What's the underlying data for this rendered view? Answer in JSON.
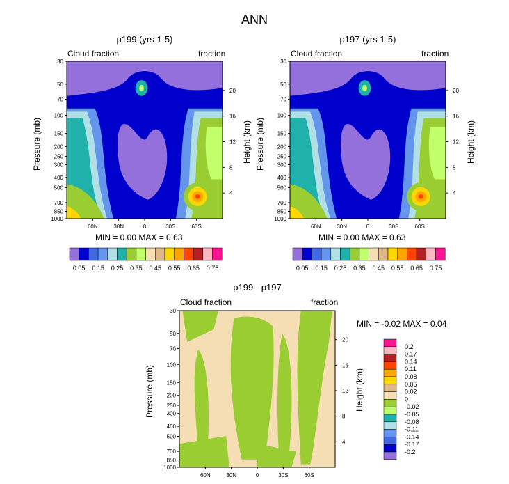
{
  "figure": {
    "title": "ANN"
  },
  "colorbar_top": {
    "labels": [
      "0.05",
      "0.15",
      "0.25",
      "0.35",
      "0.45",
      "0.55",
      "0.65",
      "0.75"
    ],
    "colors": [
      "#9370db",
      "#0000cd",
      "#4169e1",
      "#6495ed",
      "#b0e0e6",
      "#20b2aa",
      "#9acd32",
      "#c1ff6b",
      "#f5deb3",
      "#deb887",
      "#ffd700",
      "#ffa500",
      "#ff4500",
      "#b22222",
      "#ffb6c1",
      "#ff1493"
    ]
  },
  "colorbar_diff": {
    "labels": [
      "0.2",
      "0.17",
      "0.14",
      "0.11",
      "0.08",
      "0.05",
      "0.02",
      "0",
      "-0.02",
      "-0.05",
      "-0.08",
      "-0.11",
      "-0.14",
      "-0.17",
      "-0.2"
    ],
    "colors": [
      "#ff1493",
      "#ffb6c1",
      "#b22222",
      "#ff4500",
      "#ffa500",
      "#ffd700",
      "#deb887",
      "#f5deb3",
      "#9acd32",
      "#c1ff6b",
      "#20b2aa",
      "#b0e0e6",
      "#6495ed",
      "#4169e1",
      "#0000cd",
      "#9370db"
    ]
  },
  "chart_data": [
    {
      "type": "heatmap",
      "title": "p199 (yrs 1-5)",
      "left_label": "Cloud fraction",
      "right_label": "fraction",
      "xlabel": "",
      "ylabel": "Pressure (mb)",
      "ylabel_right": "Height (km)",
      "x_ticks": [
        "60N",
        "30N",
        "0",
        "30S",
        "60S"
      ],
      "y_ticks": [
        "30",
        "50",
        "70",
        "100",
        "150",
        "200",
        "250",
        "300",
        "400",
        "500",
        "700",
        "850",
        "1000"
      ],
      "y_ticks_right": [
        "20",
        "16",
        "12",
        "8",
        "4"
      ],
      "stats": "MIN =   0.00   MAX =   0.63",
      "min": 0.0,
      "max": 0.63
    },
    {
      "type": "heatmap",
      "title": "p197 (yrs 1-5)",
      "left_label": "Cloud fraction",
      "right_label": "fraction",
      "xlabel": "",
      "ylabel": "Pressure (mb)",
      "ylabel_right": "Height (km)",
      "x_ticks": [
        "60N",
        "30N",
        "0",
        "30S",
        "60S"
      ],
      "y_ticks": [
        "30",
        "50",
        "70",
        "100",
        "150",
        "200",
        "250",
        "300",
        "400",
        "500",
        "700",
        "850",
        "1000"
      ],
      "y_ticks_right": [
        "20",
        "16",
        "12",
        "8",
        "4"
      ],
      "stats": "MIN =   0.00   MAX =   0.63",
      "min": 0.0,
      "max": 0.63
    },
    {
      "type": "heatmap",
      "title": "p199 - p197",
      "left_label": "Cloud fraction",
      "right_label": "fraction",
      "xlabel": "",
      "ylabel": "Pressure (mb)",
      "ylabel_right": "Height (km)",
      "x_ticks": [
        "60N",
        "30N",
        "0",
        "30S",
        "60S"
      ],
      "y_ticks": [
        "30",
        "50",
        "70",
        "100",
        "150",
        "200",
        "250",
        "300",
        "400",
        "500",
        "700",
        "850",
        "1000"
      ],
      "y_ticks_right": [
        "20",
        "16",
        "12",
        "8",
        "4"
      ],
      "stats": "MIN =  -0.02   MAX =   0.04",
      "min": -0.02,
      "max": 0.04
    }
  ]
}
